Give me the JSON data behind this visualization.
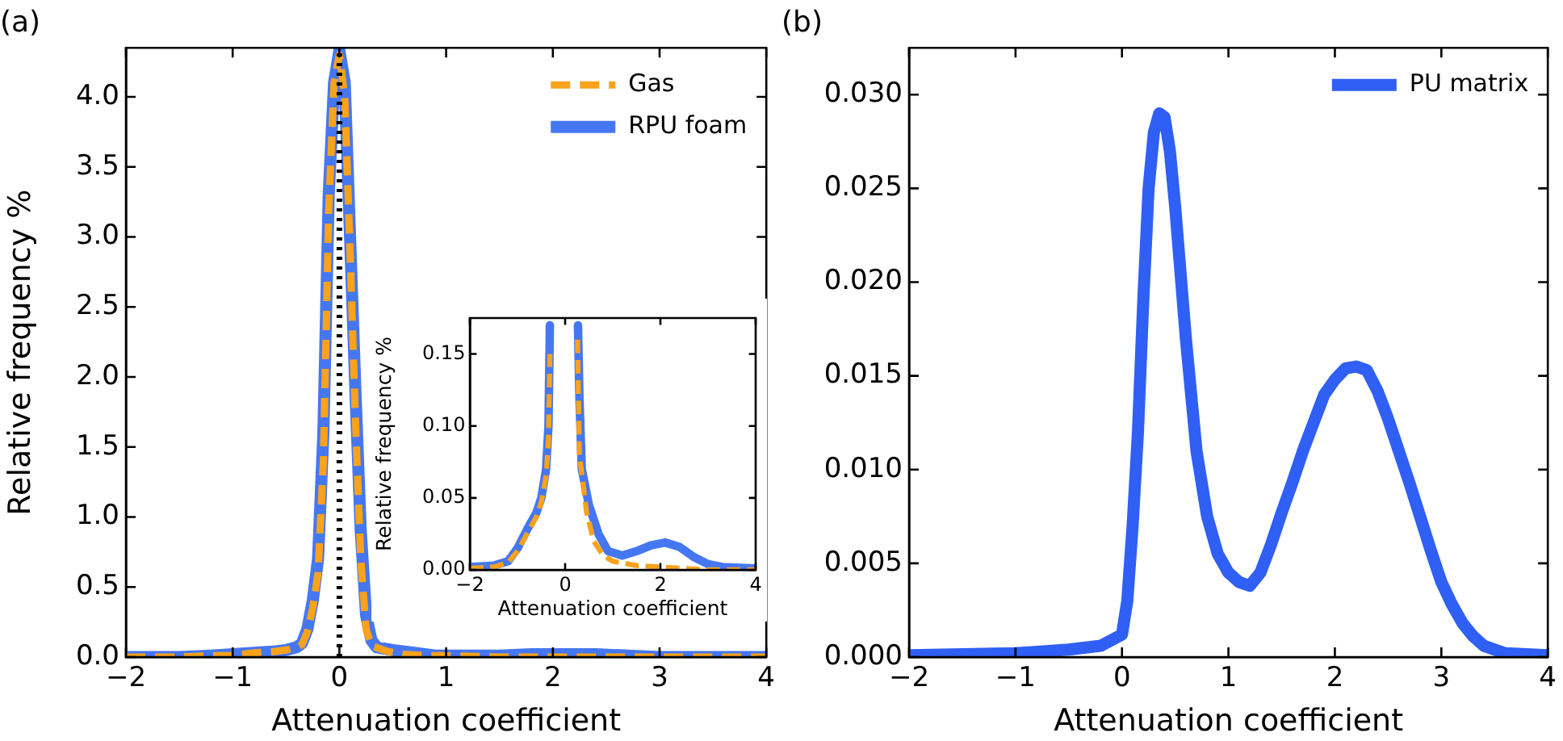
{
  "chart_data": [
    {
      "type": "line",
      "title": "(a)",
      "xlabel": "Attenuation coefficient",
      "ylabel": "Relative frequency %",
      "xlim": [
        -2,
        4
      ],
      "xticks": [
        -2,
        -1,
        0,
        1,
        2,
        3,
        4
      ],
      "ylim": [
        0,
        4.35
      ],
      "yticks": [
        {
          "value": 0,
          "label": "0.0"
        },
        0.5,
        {
          "value": 1,
          "label": "1.0"
        },
        1.5,
        {
          "value": 2,
          "label": "2.0"
        },
        2.5,
        {
          "value": 3,
          "label": "3.0"
        },
        3.5,
        {
          "value": 4,
          "label": "4.0"
        }
      ],
      "legend": "top right",
      "ref_lines": [
        {
          "axis": "x",
          "value": 0,
          "color": "#000000",
          "line_style": "dotted"
        }
      ],
      "series": [
        {
          "name": "Gas",
          "color": "#f9a21b",
          "line_style": "dashed",
          "x": [
            -2,
            -1.5,
            -1.2,
            -1,
            -0.8,
            -0.6,
            -0.5,
            -0.4,
            -0.35,
            -0.3,
            -0.25,
            -0.2,
            -0.15,
            -0.1,
            -0.05,
            0,
            0.05,
            0.1,
            0.15,
            0.2,
            0.25,
            0.3,
            0.45,
            0.6,
            0.8,
            1,
            1.5,
            2,
            2.5,
            3,
            4
          ],
          "values": [
            0,
            0,
            0.01,
            0.01,
            0.03,
            0.04,
            0.05,
            0.07,
            0.09,
            0.18,
            0.35,
            0.6,
            1.4,
            3.2,
            4.1,
            4.3,
            4.0,
            2.9,
            1.7,
            0.7,
            0.2,
            0.08,
            0.04,
            0.02,
            0.01,
            0.01,
            0,
            0,
            0,
            0,
            0
          ]
        },
        {
          "name": "RPU foam",
          "color": "#4677f2",
          "line_style": "solid",
          "x": [
            -2,
            -1.5,
            -1.2,
            -1,
            -0.8,
            -0.6,
            -0.5,
            -0.4,
            -0.35,
            -0.3,
            -0.25,
            -0.2,
            -0.15,
            -0.1,
            -0.05,
            0,
            0.05,
            0.1,
            0.15,
            0.2,
            0.25,
            0.3,
            0.35,
            0.5,
            0.7,
            0.9,
            1.2,
            1.5,
            1.8,
            2.1,
            2.4,
            2.7,
            3,
            3.3,
            4
          ],
          "values": [
            0,
            0,
            0.01,
            0.02,
            0.03,
            0.04,
            0.05,
            0.07,
            0.1,
            0.2,
            0.4,
            0.7,
            1.6,
            3.3,
            4.1,
            4.33,
            4.1,
            3.0,
            1.9,
            0.9,
            0.3,
            0.12,
            0.07,
            0.05,
            0.03,
            0.01,
            0.01,
            0.01,
            0.02,
            0.02,
            0.02,
            0.01,
            0,
            0,
            0
          ]
        }
      ]
    },
    {
      "type": "line",
      "xlabel": "Attenuation coefficient",
      "ylabel": "Relative frequency %",
      "xlim": [
        -2,
        4
      ],
      "xticks": [
        -2,
        0,
        2,
        4
      ],
      "ylim": [
        0,
        0.175
      ],
      "yticks": [
        {
          "value": 0,
          "label": "0.00"
        },
        0.05,
        {
          "value": 0.1,
          "label": "0.10"
        },
        0.15
      ],
      "series": [
        {
          "color": "#f9a21b",
          "line_style": "dashed",
          "x": [
            -2,
            -1.5,
            -1.2,
            -1,
            -0.8,
            -0.6,
            -0.5,
            -0.4,
            -0.35,
            -0.32,
            0,
            0.26,
            0.3,
            0.45,
            0.6,
            0.8,
            1,
            1.5,
            2,
            2.5,
            3,
            4
          ],
          "values": [
            0.001,
            0.002,
            0.005,
            0.013,
            0.025,
            0.037,
            0.047,
            0.065,
            0.09,
            0.15,
            null,
            0.16,
            0.08,
            0.04,
            0.02,
            0.01,
            0.006,
            0.003,
            0.002,
            0.001,
            0,
            0
          ]
        },
        {
          "color": "#4677f2",
          "line_style": "solid",
          "x": [
            -2,
            -1.5,
            -1.2,
            -1,
            -0.8,
            -0.6,
            -0.5,
            -0.4,
            -0.35,
            -0.32,
            0,
            0.27,
            0.3,
            0.35,
            0.5,
            0.7,
            0.9,
            1.2,
            1.5,
            1.8,
            2.1,
            2.4,
            2.7,
            3,
            3.3,
            4
          ],
          "values": [
            0.002,
            0.003,
            0.006,
            0.015,
            0.028,
            0.04,
            0.05,
            0.07,
            0.1,
            0.17,
            null,
            0.17,
            0.12,
            0.07,
            0.045,
            0.025,
            0.013,
            0.01,
            0.013,
            0.017,
            0.019,
            0.016,
            0.009,
            0.004,
            0.002,
            0.001
          ]
        }
      ]
    },
    {
      "type": "line",
      "title": "(b)",
      "xlabel": "Attenuation coefficient",
      "xlim": [
        -2,
        4
      ],
      "xticks": [
        -2,
        -1,
        0,
        1,
        2,
        3,
        4
      ],
      "ylim": [
        0,
        0.0325
      ],
      "yticks": [
        {
          "value": 0,
          "label": "0.000"
        },
        0.005,
        {
          "value": 0.01,
          "label": "0.010"
        },
        0.015,
        {
          "value": 0.02,
          "label": "0.020"
        },
        0.025,
        {
          "value": 0.03,
          "label": "0.030"
        }
      ],
      "legend": "top right",
      "series": [
        {
          "name": "PU matrix",
          "color": "#2f5ff5",
          "line_style": "solid",
          "x": [
            -2,
            -1,
            -0.5,
            -0.2,
            0,
            0.05,
            0.1,
            0.15,
            0.2,
            0.25,
            0.3,
            0.35,
            0.4,
            0.45,
            0.5,
            0.6,
            0.7,
            0.8,
            0.9,
            1,
            1.1,
            1.2,
            1.3,
            1.4,
            1.5,
            1.6,
            1.7,
            1.8,
            1.9,
            2,
            2.1,
            2.2,
            2.3,
            2.4,
            2.5,
            2.6,
            2.7,
            2.8,
            2.9,
            3,
            3.1,
            3.2,
            3.3,
            3.4,
            3.6,
            4
          ],
          "values": [
            0.0001,
            0.0002,
            0.0004,
            0.0006,
            0.0012,
            0.003,
            0.007,
            0.012,
            0.019,
            0.025,
            0.028,
            0.029,
            0.0288,
            0.027,
            0.024,
            0.017,
            0.011,
            0.0075,
            0.0055,
            0.0045,
            0.004,
            0.0038,
            0.0045,
            0.006,
            0.0077,
            0.0093,
            0.011,
            0.0125,
            0.014,
            0.0148,
            0.0154,
            0.0155,
            0.0153,
            0.0142,
            0.0127,
            0.011,
            0.0093,
            0.0075,
            0.0057,
            0.004,
            0.0028,
            0.0018,
            0.0011,
            0.0006,
            0.0002,
            0.0001
          ]
        }
      ]
    }
  ]
}
